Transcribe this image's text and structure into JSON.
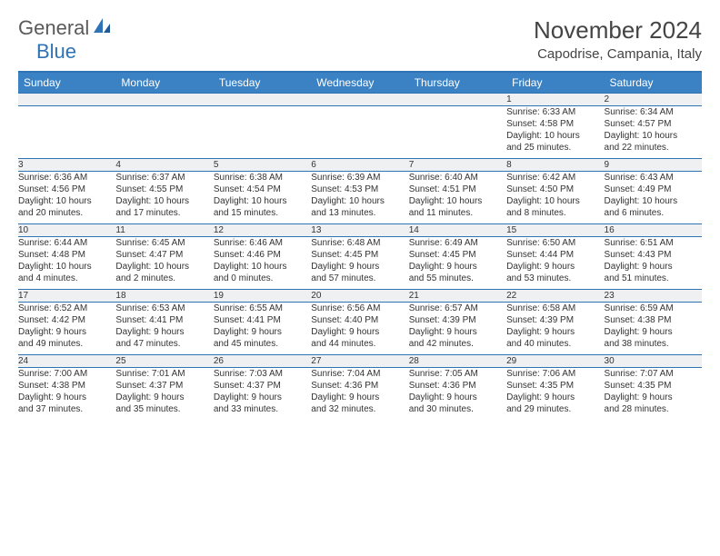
{
  "logo": {
    "text1": "General",
    "text2": "Blue"
  },
  "title": "November 2024",
  "location": "Capodrise, Campania, Italy",
  "colors": {
    "header_bg": "#3b82c4",
    "header_border": "#2f73b7",
    "daynum_bg": "#eef0f2",
    "text": "#333333",
    "logo_gray": "#5a5a5a",
    "logo_blue": "#2f73b7",
    "page_bg": "#ffffff"
  },
  "fonts": {
    "title_size": 26,
    "location_size": 15,
    "weekday_size": 12,
    "daynum_size": 11,
    "cell_size": 10
  },
  "weekdays": [
    "Sunday",
    "Monday",
    "Tuesday",
    "Wednesday",
    "Thursday",
    "Friday",
    "Saturday"
  ],
  "weeks": [
    [
      null,
      null,
      null,
      null,
      null,
      {
        "n": "1",
        "sr": "Sunrise: 6:33 AM",
        "ss": "Sunset: 4:58 PM",
        "d1": "Daylight: 10 hours",
        "d2": "and 25 minutes."
      },
      {
        "n": "2",
        "sr": "Sunrise: 6:34 AM",
        "ss": "Sunset: 4:57 PM",
        "d1": "Daylight: 10 hours",
        "d2": "and 22 minutes."
      }
    ],
    [
      {
        "n": "3",
        "sr": "Sunrise: 6:36 AM",
        "ss": "Sunset: 4:56 PM",
        "d1": "Daylight: 10 hours",
        "d2": "and 20 minutes."
      },
      {
        "n": "4",
        "sr": "Sunrise: 6:37 AM",
        "ss": "Sunset: 4:55 PM",
        "d1": "Daylight: 10 hours",
        "d2": "and 17 minutes."
      },
      {
        "n": "5",
        "sr": "Sunrise: 6:38 AM",
        "ss": "Sunset: 4:54 PM",
        "d1": "Daylight: 10 hours",
        "d2": "and 15 minutes."
      },
      {
        "n": "6",
        "sr": "Sunrise: 6:39 AM",
        "ss": "Sunset: 4:53 PM",
        "d1": "Daylight: 10 hours",
        "d2": "and 13 minutes."
      },
      {
        "n": "7",
        "sr": "Sunrise: 6:40 AM",
        "ss": "Sunset: 4:51 PM",
        "d1": "Daylight: 10 hours",
        "d2": "and 11 minutes."
      },
      {
        "n": "8",
        "sr": "Sunrise: 6:42 AM",
        "ss": "Sunset: 4:50 PM",
        "d1": "Daylight: 10 hours",
        "d2": "and 8 minutes."
      },
      {
        "n": "9",
        "sr": "Sunrise: 6:43 AM",
        "ss": "Sunset: 4:49 PM",
        "d1": "Daylight: 10 hours",
        "d2": "and 6 minutes."
      }
    ],
    [
      {
        "n": "10",
        "sr": "Sunrise: 6:44 AM",
        "ss": "Sunset: 4:48 PM",
        "d1": "Daylight: 10 hours",
        "d2": "and 4 minutes."
      },
      {
        "n": "11",
        "sr": "Sunrise: 6:45 AM",
        "ss": "Sunset: 4:47 PM",
        "d1": "Daylight: 10 hours",
        "d2": "and 2 minutes."
      },
      {
        "n": "12",
        "sr": "Sunrise: 6:46 AM",
        "ss": "Sunset: 4:46 PM",
        "d1": "Daylight: 10 hours",
        "d2": "and 0 minutes."
      },
      {
        "n": "13",
        "sr": "Sunrise: 6:48 AM",
        "ss": "Sunset: 4:45 PM",
        "d1": "Daylight: 9 hours",
        "d2": "and 57 minutes."
      },
      {
        "n": "14",
        "sr": "Sunrise: 6:49 AM",
        "ss": "Sunset: 4:45 PM",
        "d1": "Daylight: 9 hours",
        "d2": "and 55 minutes."
      },
      {
        "n": "15",
        "sr": "Sunrise: 6:50 AM",
        "ss": "Sunset: 4:44 PM",
        "d1": "Daylight: 9 hours",
        "d2": "and 53 minutes."
      },
      {
        "n": "16",
        "sr": "Sunrise: 6:51 AM",
        "ss": "Sunset: 4:43 PM",
        "d1": "Daylight: 9 hours",
        "d2": "and 51 minutes."
      }
    ],
    [
      {
        "n": "17",
        "sr": "Sunrise: 6:52 AM",
        "ss": "Sunset: 4:42 PM",
        "d1": "Daylight: 9 hours",
        "d2": "and 49 minutes."
      },
      {
        "n": "18",
        "sr": "Sunrise: 6:53 AM",
        "ss": "Sunset: 4:41 PM",
        "d1": "Daylight: 9 hours",
        "d2": "and 47 minutes."
      },
      {
        "n": "19",
        "sr": "Sunrise: 6:55 AM",
        "ss": "Sunset: 4:41 PM",
        "d1": "Daylight: 9 hours",
        "d2": "and 45 minutes."
      },
      {
        "n": "20",
        "sr": "Sunrise: 6:56 AM",
        "ss": "Sunset: 4:40 PM",
        "d1": "Daylight: 9 hours",
        "d2": "and 44 minutes."
      },
      {
        "n": "21",
        "sr": "Sunrise: 6:57 AM",
        "ss": "Sunset: 4:39 PM",
        "d1": "Daylight: 9 hours",
        "d2": "and 42 minutes."
      },
      {
        "n": "22",
        "sr": "Sunrise: 6:58 AM",
        "ss": "Sunset: 4:39 PM",
        "d1": "Daylight: 9 hours",
        "d2": "and 40 minutes."
      },
      {
        "n": "23",
        "sr": "Sunrise: 6:59 AM",
        "ss": "Sunset: 4:38 PM",
        "d1": "Daylight: 9 hours",
        "d2": "and 38 minutes."
      }
    ],
    [
      {
        "n": "24",
        "sr": "Sunrise: 7:00 AM",
        "ss": "Sunset: 4:38 PM",
        "d1": "Daylight: 9 hours",
        "d2": "and 37 minutes."
      },
      {
        "n": "25",
        "sr": "Sunrise: 7:01 AM",
        "ss": "Sunset: 4:37 PM",
        "d1": "Daylight: 9 hours",
        "d2": "and 35 minutes."
      },
      {
        "n": "26",
        "sr": "Sunrise: 7:03 AM",
        "ss": "Sunset: 4:37 PM",
        "d1": "Daylight: 9 hours",
        "d2": "and 33 minutes."
      },
      {
        "n": "27",
        "sr": "Sunrise: 7:04 AM",
        "ss": "Sunset: 4:36 PM",
        "d1": "Daylight: 9 hours",
        "d2": "and 32 minutes."
      },
      {
        "n": "28",
        "sr": "Sunrise: 7:05 AM",
        "ss": "Sunset: 4:36 PM",
        "d1": "Daylight: 9 hours",
        "d2": "and 30 minutes."
      },
      {
        "n": "29",
        "sr": "Sunrise: 7:06 AM",
        "ss": "Sunset: 4:35 PM",
        "d1": "Daylight: 9 hours",
        "d2": "and 29 minutes."
      },
      {
        "n": "30",
        "sr": "Sunrise: 7:07 AM",
        "ss": "Sunset: 4:35 PM",
        "d1": "Daylight: 9 hours",
        "d2": "and 28 minutes."
      }
    ]
  ]
}
